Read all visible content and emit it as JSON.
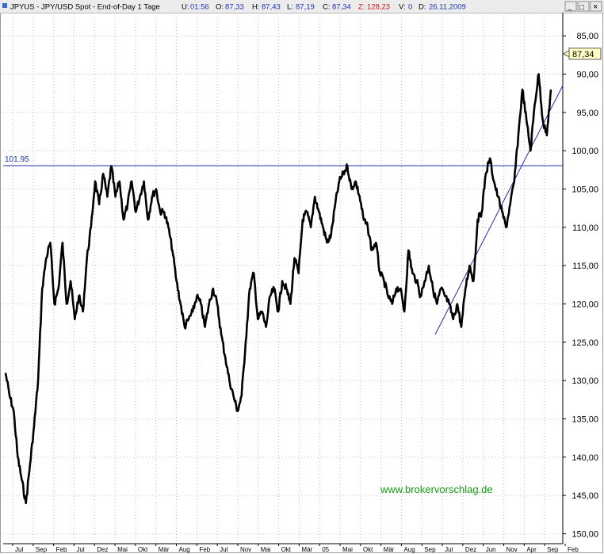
{
  "header": {
    "symbol": "JPYUS - JPY/USD Spot - End-of-Day 1 Tage",
    "u_label": "U:",
    "u_value": "01:56",
    "o_label": "O:",
    "o_value": "87,33",
    "h_label": "H:",
    "h_value": "87,43",
    "l_label": "L:",
    "l_value": "87,19",
    "c_label": "C:",
    "c_value": "87,34",
    "z_label": "Z:",
    "z_value": "128,23",
    "v_label": "V:",
    "v_value": "0",
    "d_label": "D:",
    "d_value": "26.11.2009"
  },
  "window_controls": {
    "minimize": "_",
    "maximize": "□",
    "close": "×"
  },
  "watermark": "www.brokervorschlag.de",
  "last_value_label": "87,34",
  "colors": {
    "price": "#000000",
    "annotation": "#1c2fb0",
    "watermark": "#139a13",
    "last_box": "#ffffc6"
  },
  "chart_data": {
    "type": "line",
    "title": "JPYUS - JPY/USD Spot - End-of-Day 1 Tage",
    "xlabel": "",
    "ylabel": "",
    "y_axis": "right",
    "y_inverted": true,
    "ylim": [
      150,
      83
    ],
    "y_ticks": [
      "85,00",
      "90,00",
      "95,00",
      "100,00",
      "105,00",
      "110,00",
      "115,00",
      "120,00",
      "125,00",
      "130,00",
      "135,00",
      "140,00",
      "145,00",
      "150,00"
    ],
    "y_tick_values": [
      85,
      90,
      95,
      100,
      105,
      110,
      115,
      120,
      125,
      130,
      135,
      140,
      145,
      150
    ],
    "x_ticks": [
      "Jul",
      "Sep",
      "Feb",
      "Jul",
      "Dez",
      "Mai",
      "Okt",
      "Mär",
      "Aug",
      "Feb",
      "Jul",
      "Nov",
      "Mai",
      "Okt",
      "Mär",
      "05",
      "Mai",
      "Okt",
      "Mär",
      "Aug",
      "Sep",
      "Jul",
      "Dez",
      "Jun",
      "Nov",
      "Apr",
      "Sep",
      "Feb"
    ],
    "grid": true,
    "series": [
      {
        "style": "heavy-line",
        "x": [
          0,
          1,
          2,
          3,
          4,
          5,
          6,
          7,
          8,
          9,
          10,
          11,
          12,
          13,
          14,
          15,
          16,
          17,
          18,
          19,
          20,
          21,
          22,
          23,
          24,
          25,
          26,
          27,
          28,
          29,
          30,
          31,
          32,
          33,
          34,
          35,
          36,
          37,
          38,
          39,
          40,
          41,
          42,
          43,
          44,
          45,
          46,
          47,
          48,
          49,
          50,
          51,
          52,
          53,
          54,
          55,
          56,
          57,
          58,
          59,
          60,
          61,
          62,
          63,
          64,
          65,
          66,
          67,
          68,
          69,
          70,
          71,
          72,
          73,
          74,
          75,
          76,
          77,
          78,
          79,
          80,
          81,
          82,
          83,
          84,
          85,
          86,
          87,
          88,
          89,
          90,
          91,
          92,
          93,
          94,
          95,
          96,
          97,
          98,
          99,
          100,
          101,
          102,
          103,
          104,
          105,
          106,
          107,
          108,
          109,
          110,
          111,
          112,
          113,
          114,
          115,
          116,
          117,
          118,
          119,
          120,
          121,
          122,
          123,
          124,
          125,
          126,
          127,
          128,
          129,
          130,
          131,
          132,
          133,
          134
        ],
        "y": [
          129,
          132,
          134,
          140,
          143,
          146,
          141,
          136,
          130,
          118,
          114,
          112,
          120,
          118,
          112,
          120,
          117,
          122,
          119,
          121,
          114,
          110,
          104,
          107,
          103,
          106,
          102,
          106,
          104,
          109,
          107,
          104,
          108,
          106,
          104,
          109,
          106,
          105,
          108,
          108,
          110,
          113,
          117,
          120,
          123,
          122,
          121,
          119,
          120,
          123,
          120,
          118,
          120,
          124,
          127,
          130,
          132,
          134,
          132,
          125,
          118,
          116,
          122,
          121,
          123,
          119,
          118,
          121,
          117,
          118,
          120,
          114,
          116,
          109,
          108,
          110,
          106,
          108,
          110,
          112,
          111,
          107,
          104,
          103,
          102,
          105,
          104,
          106,
          109,
          110,
          113,
          112,
          116,
          117,
          119,
          120,
          118,
          118,
          121,
          113,
          116,
          117,
          119,
          117,
          115,
          118,
          120,
          118,
          119,
          120,
          122,
          120,
          123,
          118,
          115,
          117,
          109,
          108,
          103,
          101,
          104,
          106,
          108,
          110,
          107,
          104,
          98,
          92,
          96,
          100,
          94,
          90,
          96,
          98,
          92
        ]
      }
    ],
    "annotations": [
      {
        "type": "horizontal-line",
        "value": 101.95,
        "label": "101.95"
      },
      {
        "type": "trendline",
        "from_y": 124.0,
        "to_y": 91.5
      }
    ],
    "last_value": 87.34
  }
}
